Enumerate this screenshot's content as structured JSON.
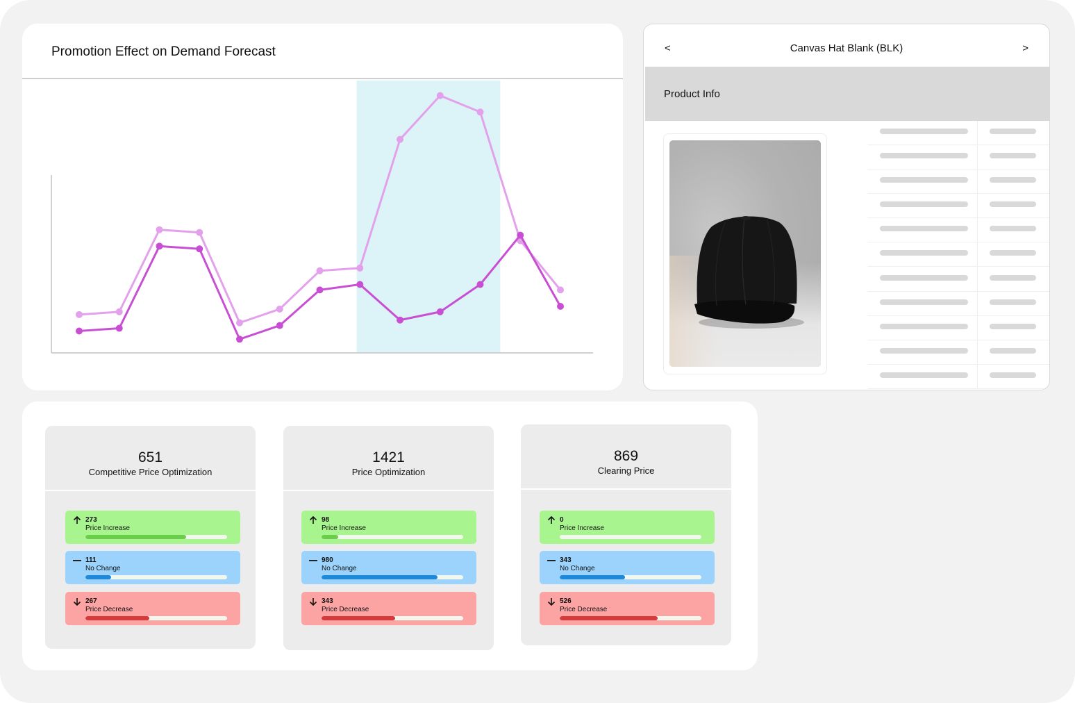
{
  "chart_card": {
    "title": "Promotion Effect on Demand Forecast"
  },
  "chart_data": {
    "type": "line",
    "title": "Promotion Effect on Demand Forecast",
    "xlabel": "",
    "ylabel": "",
    "x": [
      1,
      2,
      3,
      4,
      5,
      6,
      7,
      8,
      9,
      10,
      11,
      12,
      13
    ],
    "ylim": [
      0,
      100
    ],
    "highlight_range": [
      8,
      11
    ],
    "series": [
      {
        "values": [
          14,
          15,
          45,
          44,
          11,
          16,
          30,
          31,
          78,
          94,
          88,
          41,
          23
        ],
        "color": "#e3a1ec"
      },
      {
        "values": [
          8,
          9,
          39,
          38,
          5,
          10,
          23,
          25,
          12,
          15,
          25,
          43,
          17
        ],
        "color": "#c84fd3"
      }
    ],
    "grid": false,
    "highlight_color": "#dcf3f8",
    "axis_color": "#d0d0d0"
  },
  "product": {
    "prev_label": "<",
    "next_label": ">",
    "title": "Canvas Hat Blank (BLK)",
    "section_label": "Product Info",
    "image_subject": "black-baseball-cap",
    "placeholder_rows": 11
  },
  "stats": [
    {
      "value": "651",
      "label": "Competitive Price Optimization",
      "metrics": [
        {
          "kind": "up",
          "icon": "arrow-up-icon",
          "value": "273",
          "label": "Price Increase",
          "fill": 0.71
        },
        {
          "kind": "flat",
          "icon": "dash-icon",
          "value": "111",
          "label": "No Change",
          "fill": 0.18
        },
        {
          "kind": "down",
          "icon": "arrow-down-icon",
          "value": "267",
          "label": "Price Decrease",
          "fill": 0.45
        }
      ]
    },
    {
      "value": "1421",
      "label": "Price Optimization",
      "metrics": [
        {
          "kind": "up",
          "icon": "arrow-up-icon",
          "value": "98",
          "label": "Price Increase",
          "fill": 0.12
        },
        {
          "kind": "flat",
          "icon": "dash-icon",
          "value": "980",
          "label": "No Change",
          "fill": 0.82
        },
        {
          "kind": "down",
          "icon": "arrow-down-icon",
          "value": "343",
          "label": "Price Decrease",
          "fill": 0.52
        }
      ]
    },
    {
      "value": "869",
      "label": "Clearing Price",
      "metrics": [
        {
          "kind": "up",
          "icon": "arrow-up-icon",
          "value": "0",
          "label": "Price Increase",
          "fill": 0.0
        },
        {
          "kind": "flat",
          "icon": "dash-icon",
          "value": "343",
          "label": "No Change",
          "fill": 0.46
        },
        {
          "kind": "down",
          "icon": "arrow-down-icon",
          "value": "526",
          "label": "Price Decrease",
          "fill": 0.69
        }
      ]
    }
  ]
}
